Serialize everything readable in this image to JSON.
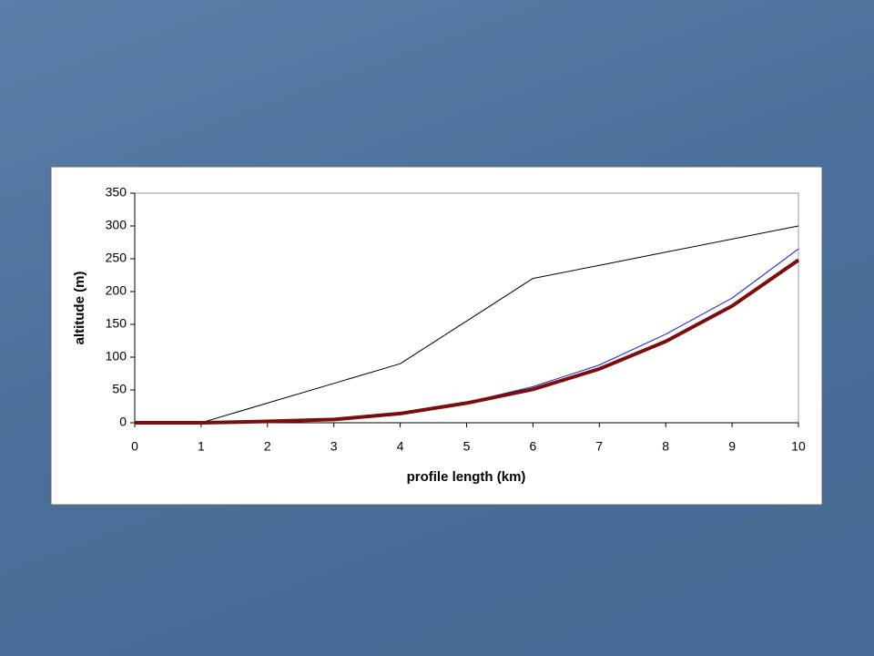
{
  "chart_data": {
    "type": "line",
    "x_label": "profile length (km)",
    "y_label": "altitude (m)",
    "x": [
      0,
      1,
      2,
      3,
      4,
      5,
      6,
      7,
      8,
      9,
      10
    ],
    "series": [
      {
        "color": "#000000",
        "values": [
          0,
          0,
          30,
          60,
          90,
          155,
          220,
          240,
          260,
          280,
          300
        ]
      },
      {
        "color": "#1f1fbf",
        "values": [
          0,
          0,
          2,
          6,
          15,
          31,
          55,
          88,
          135,
          190,
          265
        ]
      },
      {
        "color": "#7a0e0e",
        "values": [
          0,
          0,
          2,
          5,
          14,
          30,
          51,
          82,
          124,
          178,
          248
        ]
      }
    ],
    "xlim": [
      0,
      10
    ],
    "xticks": [
      0,
      1,
      2,
      3,
      4,
      5,
      6,
      7,
      8,
      9,
      10
    ],
    "ylim": [
      0,
      350
    ],
    "yticks": [
      0,
      50,
      100,
      150,
      200,
      250,
      300,
      350
    ],
    "grid": false
  }
}
